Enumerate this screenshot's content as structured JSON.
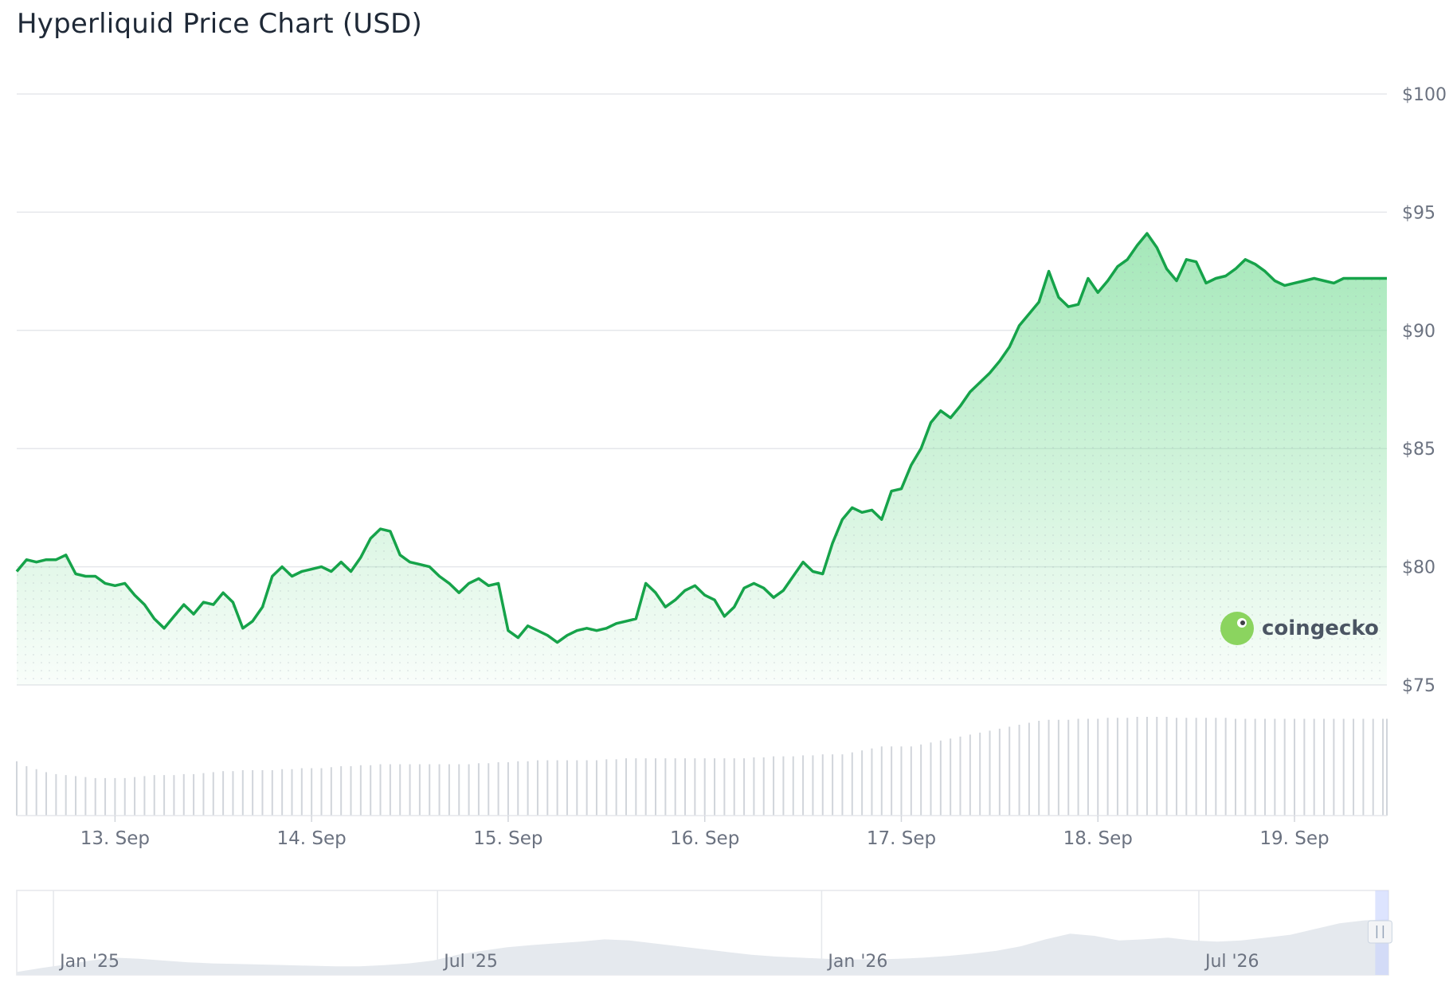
{
  "title": "Hyperliquid Price Chart (USD)",
  "watermark": "coingecko",
  "colors": {
    "line": "#16a34a",
    "area_top": "#86e0a1",
    "grid": "#e5e7eb",
    "volume": "#d1d5db",
    "navigator_fill": "#e5e9ee",
    "navigator_handle": "#c7d2fe"
  },
  "chart_data": {
    "type": "line",
    "title": "Hyperliquid Price Chart (USD)",
    "y_axis": {
      "ticks": [
        75,
        80,
        85,
        90,
        95,
        100
      ],
      "tick_labels": [
        "$75",
        "$80",
        "$85",
        "$90",
        "$95",
        "$100"
      ],
      "ylim": [
        75,
        100
      ],
      "position": "right"
    },
    "x_axis": {
      "tick_labels": [
        "13. Sep",
        "14. Sep",
        "15. Sep",
        "16. Sep",
        "17. Sep",
        "18. Sep",
        "19. Sep"
      ],
      "tick_positions": [
        13,
        14,
        15,
        16,
        17,
        18,
        19
      ],
      "xlim": [
        12.5,
        19.47
      ]
    },
    "grid": true,
    "legend": "none",
    "series": [
      {
        "x": [
          12.5,
          12.55,
          12.6,
          12.65,
          12.7,
          12.75,
          12.8,
          12.85,
          12.9,
          12.95,
          13.0,
          13.05,
          13.1,
          13.15,
          13.2,
          13.25,
          13.3,
          13.35,
          13.4,
          13.45,
          13.5,
          13.55,
          13.6,
          13.65,
          13.7,
          13.75,
          13.8,
          13.85,
          13.9,
          13.95,
          14.0,
          14.05,
          14.1,
          14.15,
          14.2,
          14.25,
          14.3,
          14.35,
          14.4,
          14.45,
          14.5,
          14.55,
          14.6,
          14.65,
          14.7,
          14.75,
          14.8,
          14.85,
          14.9,
          14.95,
          15.0,
          15.05,
          15.1,
          15.15,
          15.2,
          15.25,
          15.3,
          15.35,
          15.4,
          15.45,
          15.5,
          15.55,
          15.6,
          15.65,
          15.7,
          15.75,
          15.8,
          15.85,
          15.9,
          15.95,
          16.0,
          16.05,
          16.1,
          16.15,
          16.2,
          16.25,
          16.3,
          16.35,
          16.4,
          16.45,
          16.5,
          16.55,
          16.6,
          16.65,
          16.7,
          16.75,
          16.8,
          16.85,
          16.9,
          16.95,
          17.0,
          17.05,
          17.1,
          17.15,
          17.2,
          17.25,
          17.3,
          17.35,
          17.4,
          17.45,
          17.5,
          17.55,
          17.6,
          17.65,
          17.7,
          17.75,
          17.8,
          17.85,
          17.9,
          17.95,
          18.0,
          18.05,
          18.1,
          18.15,
          18.2,
          18.25,
          18.3,
          18.35,
          18.4,
          18.45,
          18.5,
          18.55,
          18.6,
          18.65,
          18.7,
          18.75,
          18.8,
          18.85,
          18.9,
          18.95,
          19.0,
          19.05,
          19.1,
          19.15,
          19.2,
          19.25,
          19.3,
          19.35,
          19.4,
          19.45,
          19.47
        ],
        "y": [
          79.8,
          80.3,
          80.2,
          80.3,
          80.3,
          80.5,
          79.7,
          79.6,
          79.6,
          79.3,
          79.2,
          79.3,
          78.8,
          78.4,
          77.8,
          77.4,
          77.9,
          78.4,
          78.0,
          78.5,
          78.4,
          78.9,
          78.5,
          77.4,
          77.7,
          78.3,
          79.6,
          80.0,
          79.6,
          79.8,
          79.9,
          80.0,
          79.8,
          80.2,
          79.8,
          80.4,
          81.2,
          81.6,
          81.5,
          80.5,
          80.2,
          80.1,
          80.0,
          79.6,
          79.3,
          78.9,
          79.3,
          79.5,
          79.2,
          79.3,
          77.3,
          77.0,
          77.5,
          77.3,
          77.1,
          76.8,
          77.1,
          77.3,
          77.4,
          77.3,
          77.4,
          77.6,
          77.7,
          77.8,
          79.3,
          78.9,
          78.3,
          78.6,
          79.0,
          79.2,
          78.8,
          78.6,
          77.9,
          78.3,
          79.1,
          79.3,
          79.1,
          78.7,
          79.0,
          79.6,
          80.2,
          79.8,
          79.7,
          81.0,
          82.0,
          82.5,
          82.3,
          82.4,
          82.0,
          83.2,
          83.3,
          84.3,
          85.0,
          86.1,
          86.6,
          86.3,
          86.8,
          87.4,
          87.8,
          88.2,
          88.7,
          89.3,
          90.2,
          90.7,
          91.2,
          92.5,
          91.4,
          91.0,
          91.1,
          92.2,
          91.6,
          92.1,
          92.7,
          93.0,
          93.6,
          94.1,
          93.5,
          92.6,
          92.1,
          93.0,
          92.9,
          92.0,
          92.2,
          92.3,
          92.6,
          93.0,
          92.8,
          92.5,
          92.1,
          91.9,
          92.0,
          92.1,
          92.2,
          92.1,
          92.0,
          92.2,
          92.2,
          92.2,
          92.2,
          92.2,
          92.2
        ],
        "volume_relative": [
          0.55,
          0.5,
          0.47,
          0.44,
          0.42,
          0.41,
          0.4,
          0.39,
          0.38,
          0.38,
          0.38,
          0.38,
          0.39,
          0.4,
          0.41,
          0.41,
          0.41,
          0.42,
          0.42,
          0.43,
          0.44,
          0.45,
          0.45,
          0.46,
          0.46,
          0.46,
          0.46,
          0.47,
          0.47,
          0.48,
          0.48,
          0.48,
          0.49,
          0.5,
          0.5,
          0.51,
          0.51,
          0.52,
          0.52,
          0.52,
          0.52,
          0.52,
          0.52,
          0.52,
          0.52,
          0.52,
          0.52,
          0.53,
          0.53,
          0.54,
          0.54,
          0.55,
          0.55,
          0.56,
          0.56,
          0.56,
          0.56,
          0.56,
          0.56,
          0.56,
          0.57,
          0.57,
          0.58,
          0.58,
          0.58,
          0.58,
          0.58,
          0.58,
          0.58,
          0.58,
          0.58,
          0.58,
          0.58,
          0.58,
          0.58,
          0.59,
          0.59,
          0.6,
          0.6,
          0.6,
          0.61,
          0.61,
          0.62,
          0.62,
          0.62,
          0.64,
          0.66,
          0.68,
          0.7,
          0.7,
          0.7,
          0.7,
          0.72,
          0.74,
          0.76,
          0.78,
          0.8,
          0.82,
          0.84,
          0.86,
          0.88,
          0.9,
          0.92,
          0.94,
          0.96,
          0.97,
          0.97,
          0.97,
          0.98,
          0.98,
          0.98,
          0.99,
          0.99,
          0.99,
          1.0,
          1.0,
          1.0,
          1.0,
          0.99,
          0.99,
          0.99,
          0.99,
          0.99,
          0.99,
          0.98,
          0.98,
          0.98,
          0.98,
          0.98,
          0.98,
          0.98,
          0.98,
          0.98,
          0.98,
          0.98,
          0.98,
          0.98,
          0.98,
          0.98,
          0.98,
          0.98
        ]
      }
    ],
    "navigator": {
      "tick_labels": [
        "Jan '25",
        "Jul '25",
        "Jan '26",
        "Jul '26"
      ],
      "tick_positions": [
        0.05,
        0.33,
        0.61,
        0.885
      ],
      "values": [
        0.05,
        0.12,
        0.18,
        0.25,
        0.3,
        0.28,
        0.25,
        0.22,
        0.2,
        0.19,
        0.18,
        0.17,
        0.16,
        0.15,
        0.15,
        0.17,
        0.2,
        0.25,
        0.35,
        0.42,
        0.48,
        0.52,
        0.55,
        0.58,
        0.62,
        0.6,
        0.55,
        0.5,
        0.45,
        0.4,
        0.35,
        0.32,
        0.3,
        0.28,
        0.27,
        0.27,
        0.28,
        0.3,
        0.33,
        0.37,
        0.42,
        0.5,
        0.62,
        0.72,
        0.68,
        0.6,
        0.62,
        0.65,
        0.6,
        0.58,
        0.6,
        0.65,
        0.7,
        0.8,
        0.9,
        0.95,
        0.97
      ],
      "selection_start": 0.995
    }
  }
}
